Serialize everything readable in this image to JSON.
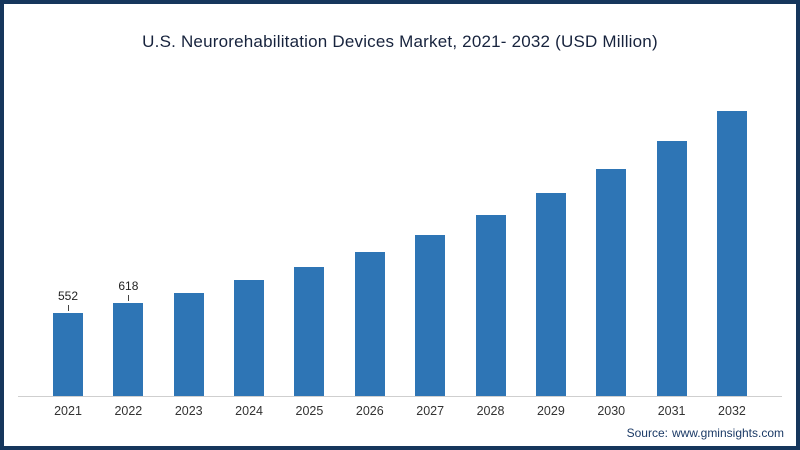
{
  "title": "U.S. Neurorehabilitation Devices Market, 2021- 2032 (USD Million)",
  "source": {
    "label": "Source:",
    "value": "www.gminsights.com"
  },
  "chart_data": {
    "type": "bar",
    "title": "U.S. Neurorehabilitation Devices Market, 2021- 2032 (USD Million)",
    "categories": [
      "2021",
      "2022",
      "2023",
      "2024",
      "2025",
      "2026",
      "2027",
      "2028",
      "2029",
      "2030",
      "2031",
      "2032"
    ],
    "values": [
      552,
      618,
      690,
      770,
      860,
      960,
      1075,
      1205,
      1350,
      1510,
      1700,
      1900
    ],
    "data_labels": {
      "2021": "552",
      "2022": "618"
    },
    "bar_color": "#2e75b5",
    "frame_color": "#16365c",
    "axis_line_color": "#cfcfcf",
    "ylim": [
      0,
      2000
    ],
    "xlabel": "",
    "ylabel": "",
    "grid": false,
    "legend": "none"
  }
}
